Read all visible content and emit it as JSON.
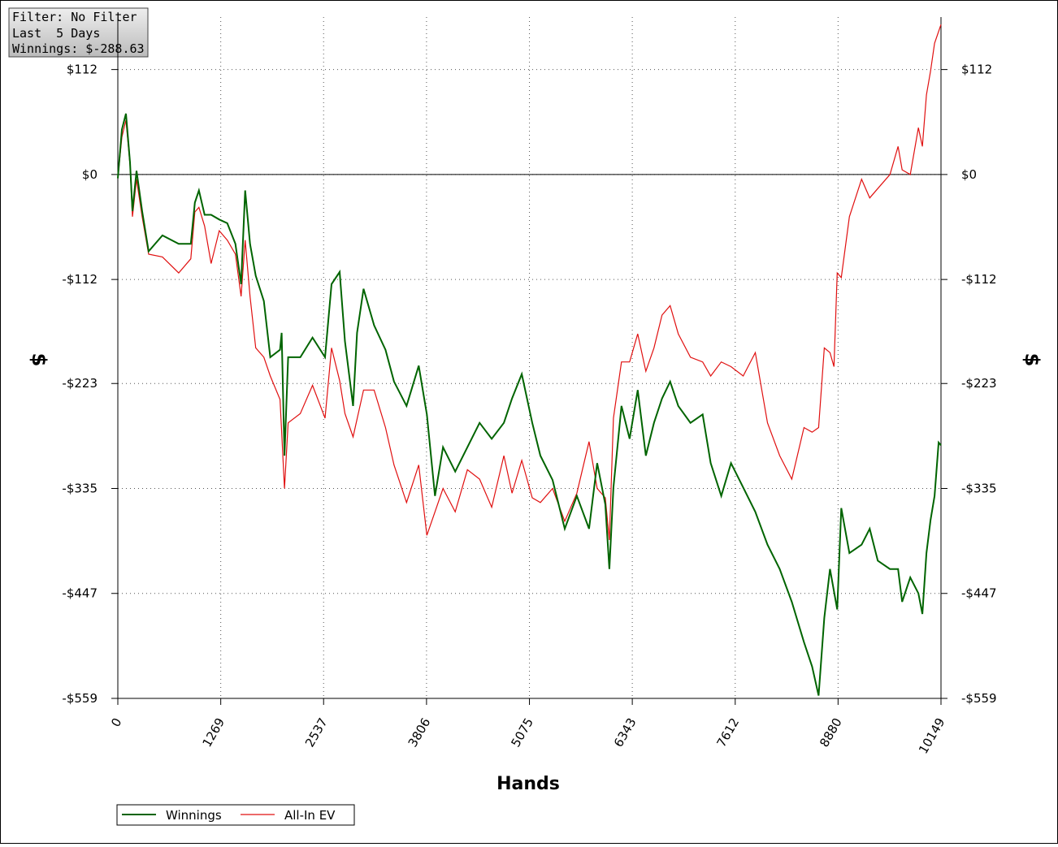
{
  "chart_data": {
    "type": "line",
    "annotations": [
      "Filter: No Filter",
      "Last  5 Days",
      "Winnings: $-288.63"
    ],
    "x_label": "Hands",
    "y_label": "$",
    "y2_label": "$",
    "xlim": [
      0,
      10149
    ],
    "xticks": [
      0,
      1269,
      2537,
      3806,
      5075,
      6343,
      7612,
      8880,
      10149
    ],
    "ylim": [
      -559,
      168
    ],
    "yticks": [
      {
        "value": -559,
        "label": "-$559"
      },
      {
        "value": -447,
        "label": "-$447"
      },
      {
        "value": -335,
        "label": "-$335"
      },
      {
        "value": -223,
        "label": "-$223"
      },
      {
        "value": -112,
        "label": "-$112"
      },
      {
        "value": 0,
        "label": "$0"
      },
      {
        "value": 112,
        "label": "$112"
      }
    ],
    "y2lim": [
      -559,
      168
    ],
    "y2ticks": [
      {
        "value": -559,
        "label": "-$559"
      },
      {
        "value": -447,
        "label": "-$447"
      },
      {
        "value": -335,
        "label": "-$335"
      },
      {
        "value": -223,
        "label": "-$223"
      },
      {
        "value": -112,
        "label": "-$112"
      },
      {
        "value": 0,
        "label": "$0"
      },
      {
        "value": 112,
        "label": "$112"
      }
    ],
    "grid": true,
    "legend": "bottom-left",
    "series": [
      {
        "name": "Winnings",
        "color": "#006400",
        "x": [
          0,
          50,
          100,
          150,
          180,
          230,
          300,
          380,
          550,
          750,
          900,
          950,
          1000,
          1070,
          1150,
          1250,
          1350,
          1450,
          1520,
          1570,
          1630,
          1700,
          1800,
          1880,
          2000,
          2020,
          2055,
          2100,
          2250,
          2400,
          2555,
          2635,
          2735,
          2800,
          2900,
          2950,
          3030,
          3160,
          3300,
          3405,
          3560,
          3710,
          3810,
          3910,
          4010,
          4160,
          4310,
          4460,
          4610,
          4760,
          4860,
          4980,
          5110,
          5210,
          5360,
          5510,
          5660,
          5810,
          5910,
          6010,
          6060,
          6110,
          6210,
          6310,
          6410,
          6510,
          6610,
          6710,
          6810,
          6910,
          7060,
          7210,
          7310,
          7440,
          7560,
          7710,
          7860,
          8010,
          8160,
          8310,
          8460,
          8560,
          8640,
          8710,
          8780,
          8870,
          8920,
          9020,
          9170,
          9270,
          9370,
          9520,
          9620,
          9670,
          9770,
          9870,
          9920,
          9970,
          10020,
          10070,
          10120,
          10149
        ],
        "values": [
          -4,
          48,
          65,
          13,
          -39,
          4,
          -39,
          -82,
          -65,
          -74,
          -74,
          -30,
          -17,
          -43,
          -43,
          -48,
          -52,
          -74,
          -117,
          -17,
          -74,
          -108,
          -135,
          -195,
          -187,
          -169,
          -300,
          -195,
          -195,
          -174,
          -195,
          -117,
          -104,
          -178,
          -247,
          -169,
          -122,
          -161,
          -187,
          -221,
          -247,
          -204,
          -256,
          -343,
          -291,
          -317,
          -291,
          -265,
          -282,
          -265,
          -239,
          -213,
          -265,
          -300,
          -326,
          -378,
          -343,
          -378,
          -308,
          -352,
          -421,
          -334,
          -247,
          -282,
          -230,
          -300,
          -265,
          -239,
          -221,
          -247,
          -265,
          -256,
          -308,
          -343,
          -308,
          -334,
          -360,
          -395,
          -421,
          -456,
          -499,
          -525,
          -556,
          -473,
          -421,
          -464,
          -356,
          -404,
          -395,
          -378,
          -412,
          -421,
          -421,
          -456,
          -430,
          -447,
          -469,
          -404,
          -369,
          -343,
          -286,
          -289
        ]
      },
      {
        "name": "All-In EV",
        "color": "#e01010",
        "x": [
          0,
          50,
          100,
          150,
          180,
          230,
          300,
          380,
          550,
          750,
          900,
          950,
          1000,
          1070,
          1150,
          1250,
          1350,
          1450,
          1520,
          1570,
          1630,
          1700,
          1800,
          1880,
          2000,
          2055,
          2100,
          2250,
          2400,
          2555,
          2635,
          2735,
          2800,
          2900,
          3030,
          3160,
          3300,
          3405,
          3560,
          3710,
          3810,
          3910,
          4010,
          4160,
          4310,
          4460,
          4610,
          4760,
          4860,
          4980,
          5110,
          5210,
          5360,
          5510,
          5660,
          5810,
          5910,
          6010,
          6060,
          6110,
          6210,
          6310,
          6410,
          6510,
          6610,
          6710,
          6810,
          6910,
          7060,
          7210,
          7310,
          7440,
          7560,
          7710,
          7860,
          8010,
          8160,
          8310,
          8460,
          8560,
          8640,
          8710,
          8780,
          8830,
          8870,
          8920,
          9020,
          9170,
          9270,
          9370,
          9520,
          9620,
          9670,
          9770,
          9870,
          9920,
          9970,
          10020,
          10070,
          10149
        ],
        "values": [
          -4,
          40,
          58,
          10,
          -45,
          -5,
          -45,
          -85,
          -88,
          -105,
          -90,
          -40,
          -35,
          -55,
          -95,
          -60,
          -70,
          -85,
          -130,
          -70,
          -130,
          -185,
          -195,
          -215,
          -240,
          -335,
          -265,
          -255,
          -225,
          -260,
          -185,
          -220,
          -255,
          -280,
          -230,
          -230,
          -270,
          -310,
          -350,
          -310,
          -385,
          -360,
          -335,
          -360,
          -315,
          -325,
          -355,
          -300,
          -340,
          -305,
          -345,
          -350,
          -335,
          -370,
          -340,
          -285,
          -335,
          -345,
          -390,
          -260,
          -200,
          -200,
          -170,
          -210,
          -185,
          -150,
          -140,
          -170,
          -195,
          -200,
          -215,
          -200,
          -205,
          -215,
          -190,
          -265,
          -300,
          -325,
          -270,
          -275,
          -270,
          -185,
          -190,
          -205,
          -105,
          -110,
          -45,
          -5,
          -25,
          -15,
          0,
          30,
          5,
          0,
          50,
          30,
          85,
          110,
          140,
          160
        ]
      }
    ]
  }
}
